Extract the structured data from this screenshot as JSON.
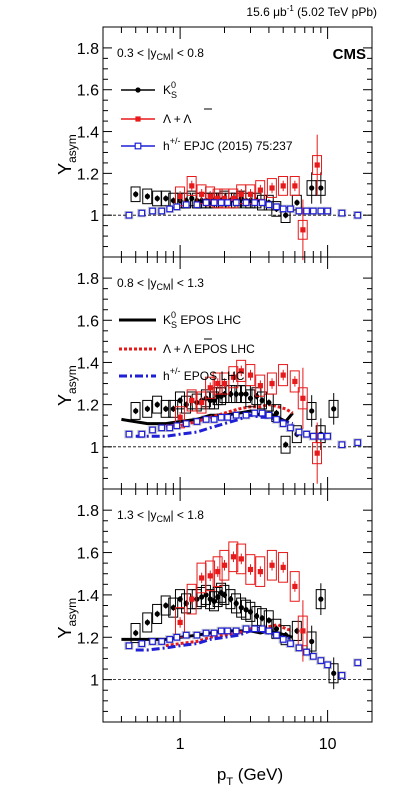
{
  "header": {
    "lumi": "15.6 μb",
    "lumi_sup": "-1",
    "lumi_rest": " (5.02 TeV pPb)"
  },
  "cms_label": "CMS",
  "axes": {
    "xlabel": "p",
    "xlabel_sub": "T",
    "xlabel_unit": " (GeV)",
    "ylabel": "Y",
    "ylabel_sub": "asym",
    "xscale": "log",
    "xlim": [
      0.3,
      20
    ],
    "ylim": [
      0.8,
      1.9
    ],
    "yticks": [
      "1",
      "1.2",
      "1.4",
      "1.6",
      "1.8"
    ],
    "xticks": [
      "1",
      "10"
    ]
  },
  "colors": {
    "kshort": "#000000",
    "lambda": "#e8191a",
    "hadron": "#1f1fd6",
    "band": "#c8c8c8"
  },
  "chart_data": [
    {
      "type": "scatter",
      "rapidity_label": "0.3 < |y_CM| < 0.8",
      "legend": [
        {
          "label": "K0S",
          "text": "K",
          "sub": "S",
          "sup": "0"
        },
        {
          "label": "Λ + Λ̅",
          "text": "Λ + Λ"
        },
        {
          "label": "h+/- EPJC (2015) 75:237",
          "text": "h",
          "sup": "+/-",
          "rest": " EPJC (2015) 75:237"
        }
      ],
      "series": [
        {
          "name": "K0S",
          "kind": "data",
          "color": "kshort",
          "x": [
            0.5,
            0.6,
            0.7,
            0.8,
            0.9,
            1.0,
            1.1,
            1.2,
            1.3,
            1.4,
            1.5,
            1.6,
            1.7,
            1.8,
            1.9,
            2.0,
            2.2,
            2.4,
            2.6,
            2.8,
            3.0,
            3.3,
            3.6,
            4.0,
            4.5,
            5.2,
            6.2,
            7.8,
            9.0
          ],
          "y": [
            1.1,
            1.09,
            1.08,
            1.08,
            1.07,
            1.07,
            1.07,
            1.08,
            1.07,
            1.07,
            1.07,
            1.07,
            1.07,
            1.07,
            1.07,
            1.08,
            1.07,
            1.07,
            1.08,
            1.07,
            1.07,
            1.07,
            1.06,
            1.06,
            1.03,
            1.0,
            1.06,
            1.13,
            1.13
          ],
          "syst": 0.035
        },
        {
          "name": "Λ + Λ̅",
          "kind": "data",
          "color": "lambda",
          "x": [
            1.0,
            1.2,
            1.4,
            1.6,
            1.8,
            2.0,
            2.3,
            2.6,
            3.0,
            3.5,
            4.2,
            5.0,
            6.0,
            6.8,
            8.5
          ],
          "y": [
            1.09,
            1.14,
            1.1,
            1.09,
            1.08,
            1.08,
            1.08,
            1.1,
            1.1,
            1.12,
            1.13,
            1.14,
            1.14,
            0.93,
            1.24
          ],
          "syst": 0.045
        },
        {
          "name": "h+/- EPJC (2015) 75:237",
          "kind": "data",
          "color": "hadron",
          "x": [
            0.45,
            0.55,
            0.65,
            0.75,
            0.85,
            0.95,
            1.1,
            1.3,
            1.5,
            1.7,
            1.9,
            2.1,
            2.4,
            2.8,
            3.2,
            3.6,
            4.0,
            4.5,
            5.0,
            5.6,
            6.4,
            7.2,
            8.0,
            9.0,
            10.0,
            12.5,
            16.0
          ],
          "y": [
            1.0,
            1.01,
            1.02,
            1.02,
            1.03,
            1.04,
            1.05,
            1.05,
            1.06,
            1.06,
            1.06,
            1.06,
            1.06,
            1.06,
            1.06,
            1.06,
            1.05,
            1.04,
            1.03,
            1.03,
            1.02,
            1.02,
            1.02,
            1.02,
            1.02,
            1.01,
            1.0
          ]
        }
      ]
    },
    {
      "type": "scatter",
      "rapidity_label": "0.8 < |y_CM| < 1.3",
      "legend": [
        {
          "label": "K0S EPOS LHC",
          "text": "K",
          "sub": "S",
          "sup": "0",
          "rest": " EPOS LHC"
        },
        {
          "label": "Λ + Λ̅ EPOS LHC",
          "text": "Λ + Λ",
          "rest": " EPOS LHC"
        },
        {
          "label": "h+/- EPOS LHC",
          "text": "h",
          "sup": "+/-",
          "rest": " EPOS LHC"
        }
      ],
      "series": [
        {
          "name": "K0S",
          "kind": "data",
          "color": "kshort",
          "x": [
            0.5,
            0.6,
            0.7,
            0.8,
            0.9,
            1.0,
            1.1,
            1.2,
            1.3,
            1.4,
            1.5,
            1.6,
            1.7,
            1.8,
            1.9,
            2.0,
            2.2,
            2.4,
            2.6,
            2.8,
            3.0,
            3.3,
            3.6,
            4.0,
            4.5,
            5.2,
            6.2,
            7.8,
            9.0,
            11.0
          ],
          "y": [
            1.17,
            1.18,
            1.2,
            1.18,
            1.18,
            1.22,
            1.2,
            1.22,
            1.21,
            1.22,
            1.23,
            1.22,
            1.22,
            1.24,
            1.24,
            1.25,
            1.25,
            1.25,
            1.25,
            1.25,
            1.23,
            1.24,
            1.22,
            1.21,
            1.16,
            1.01,
            1.06,
            1.17,
            1.06,
            1.18
          ],
          "syst": 0.04
        },
        {
          "name": "Λ + Λ̅",
          "kind": "data",
          "color": "lambda",
          "x": [
            1.0,
            1.2,
            1.4,
            1.6,
            1.8,
            2.0,
            2.3,
            2.6,
            3.0,
            3.5,
            4.2,
            5.0,
            6.0,
            6.8,
            8.5
          ],
          "y": [
            1.14,
            1.22,
            1.21,
            1.28,
            1.3,
            1.3,
            1.33,
            1.36,
            1.34,
            1.29,
            1.3,
            1.34,
            1.31,
            1.23,
            0.97
          ],
          "syst": 0.05
        },
        {
          "name": "h+/-",
          "kind": "data",
          "color": "hadron",
          "x": [
            0.45,
            0.55,
            0.65,
            0.75,
            0.85,
            0.95,
            1.1,
            1.3,
            1.5,
            1.7,
            1.9,
            2.1,
            2.4,
            2.8,
            3.2,
            3.6,
            4.0,
            4.5,
            5.0,
            5.6,
            6.4,
            7.2,
            8.0,
            9.0,
            10.0,
            12.5,
            16.0
          ],
          "y": [
            1.06,
            1.06,
            1.08,
            1.09,
            1.09,
            1.1,
            1.11,
            1.12,
            1.13,
            1.13,
            1.14,
            1.14,
            1.15,
            1.15,
            1.16,
            1.16,
            1.15,
            1.13,
            1.11,
            1.09,
            1.07,
            1.06,
            1.05,
            1.05,
            1.05,
            1.01,
            1.02
          ]
        },
        {
          "name": "K0S EPOS LHC",
          "kind": "model",
          "color": "kshort",
          "dash": "solid",
          "x": [
            0.4,
            0.6,
            0.8,
            1.0,
            1.3,
            1.6,
            2.0,
            2.5,
            3.0,
            3.5,
            4.0,
            4.6,
            5.2,
            5.8
          ],
          "y": [
            1.13,
            1.11,
            1.11,
            1.12,
            1.13,
            1.15,
            1.15,
            1.16,
            1.17,
            1.15,
            1.16,
            1.14,
            1.12,
            1.16
          ]
        },
        {
          "name": "Λ + Λ̅ EPOS LHC",
          "kind": "model",
          "color": "lambda",
          "dash": "dot",
          "x": [
            0.8,
            1.0,
            1.3,
            1.6,
            2.0,
            2.5,
            3.0,
            3.5,
            4.0,
            4.6,
            5.2,
            5.8
          ],
          "y": [
            1.1,
            1.1,
            1.12,
            1.14,
            1.16,
            1.18,
            1.19,
            1.19,
            1.2,
            1.19,
            1.18,
            1.16
          ]
        },
        {
          "name": "h+/- EPOS LHC",
          "kind": "model",
          "color": "hadron",
          "dash": "dashdot",
          "x": [
            0.5,
            0.6,
            0.8,
            1.0,
            1.3,
            1.6,
            2.0,
            2.5,
            3.0,
            3.5,
            4.0,
            4.6,
            5.2,
            5.8
          ],
          "y": [
            1.05,
            1.05,
            1.05,
            1.06,
            1.07,
            1.09,
            1.11,
            1.13,
            1.15,
            1.14,
            1.14,
            1.13,
            1.12,
            1.11
          ]
        }
      ]
    },
    {
      "type": "scatter",
      "rapidity_label": "1.3 < |y_CM| < 1.8",
      "legend": [],
      "series": [
        {
          "name": "K0S",
          "kind": "data",
          "color": "kshort",
          "x": [
            0.5,
            0.6,
            0.7,
            0.8,
            0.9,
            1.0,
            1.1,
            1.2,
            1.3,
            1.4,
            1.5,
            1.6,
            1.7,
            1.8,
            1.9,
            2.0,
            2.2,
            2.4,
            2.6,
            2.8,
            3.0,
            3.3,
            3.6,
            4.0,
            4.5,
            5.2,
            6.2,
            7.8,
            9.0,
            11.0
          ],
          "y": [
            1.22,
            1.27,
            1.31,
            1.35,
            1.34,
            1.38,
            1.36,
            1.38,
            1.38,
            1.39,
            1.4,
            1.38,
            1.37,
            1.39,
            1.41,
            1.4,
            1.38,
            1.36,
            1.34,
            1.33,
            1.32,
            1.3,
            1.29,
            1.28,
            1.24,
            1.21,
            1.23,
            1.18,
            1.38,
            1.03
          ],
          "syst": 0.045
        },
        {
          "name": "Λ + Λ̅",
          "kind": "data",
          "color": "lambda",
          "x": [
            1.0,
            1.2,
            1.4,
            1.6,
            1.8,
            2.0,
            2.3,
            2.6,
            3.0,
            3.5,
            4.2,
            5.0,
            6.0,
            6.8
          ],
          "y": [
            1.27,
            1.38,
            1.48,
            1.49,
            1.51,
            1.54,
            1.58,
            1.57,
            1.52,
            1.51,
            1.54,
            1.53,
            1.44,
            1.23
          ],
          "syst": 0.07
        },
        {
          "name": "h+/-",
          "kind": "data",
          "color": "hadron",
          "x": [
            0.45,
            0.55,
            0.65,
            0.75,
            0.85,
            0.95,
            1.1,
            1.3,
            1.5,
            1.7,
            1.9,
            2.1,
            2.4,
            2.8,
            3.2,
            3.6,
            4.0,
            4.5,
            5.0,
            5.6,
            6.4,
            7.2,
            8.0,
            9.0,
            10.0,
            12.5,
            16.0
          ],
          "y": [
            1.16,
            1.17,
            1.18,
            1.18,
            1.19,
            1.2,
            1.21,
            1.21,
            1.22,
            1.22,
            1.23,
            1.23,
            1.23,
            1.24,
            1.24,
            1.24,
            1.23,
            1.21,
            1.19,
            1.17,
            1.15,
            1.13,
            1.11,
            1.09,
            1.07,
            1.02,
            1.08
          ]
        },
        {
          "name": "K0S EPOS LHC",
          "kind": "model",
          "color": "kshort",
          "dash": "solid",
          "x": [
            0.4,
            0.6,
            0.8,
            1.0,
            1.3,
            1.6,
            2.0,
            2.5,
            3.0,
            3.5,
            4.0,
            4.6,
            5.2,
            5.8
          ],
          "y": [
            1.19,
            1.19,
            1.19,
            1.2,
            1.21,
            1.22,
            1.23,
            1.23,
            1.23,
            1.22,
            1.23,
            1.22,
            1.21,
            1.2
          ]
        },
        {
          "name": "Λ + Λ̅ EPOS LHC",
          "kind": "model",
          "color": "lambda",
          "dash": "dot",
          "x": [
            0.8,
            1.0,
            1.3,
            1.6,
            2.0,
            2.5,
            3.0,
            3.5,
            4.0,
            4.6,
            5.2,
            5.8
          ],
          "y": [
            1.16,
            1.17,
            1.18,
            1.2,
            1.21,
            1.22,
            1.24,
            1.24,
            1.25,
            1.26,
            1.24,
            1.23
          ]
        },
        {
          "name": "h+/- EPOS LHC",
          "kind": "model",
          "color": "hadron",
          "dash": "dashdot",
          "x": [
            0.5,
            0.6,
            0.8,
            1.0,
            1.3,
            1.6,
            2.0,
            2.5,
            3.0,
            3.5,
            4.0,
            4.6,
            5.2,
            5.8
          ],
          "y": [
            1.14,
            1.14,
            1.15,
            1.16,
            1.17,
            1.19,
            1.2,
            1.21,
            1.23,
            1.23,
            1.22,
            1.21,
            1.2,
            1.19
          ]
        }
      ]
    }
  ]
}
